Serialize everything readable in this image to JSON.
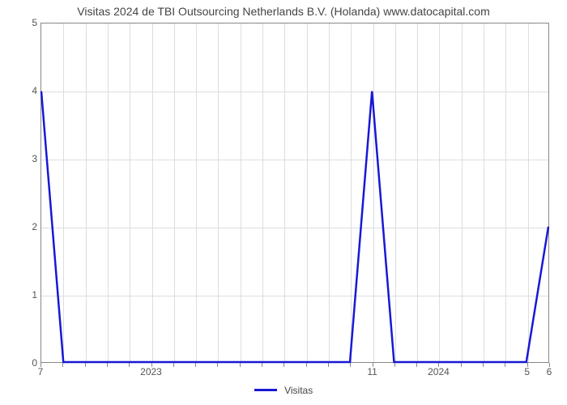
{
  "chart": {
    "type": "line",
    "title": "Visitas 2024 de TBI Outsourcing Netherlands B.V. (Holanda) www.datocapital.com",
    "title_fontsize": 14,
    "title_color": "#444444",
    "background_color": "#ffffff",
    "plot_border_color": "#888888",
    "grid_color": "#dddddd",
    "axis_label_color": "#555555",
    "axis_fontsize": 12,
    "ylim": [
      0,
      5
    ],
    "ytick_step": 1,
    "yticks": [
      0,
      1,
      2,
      3,
      4,
      5
    ],
    "xlim": [
      0,
      23
    ],
    "minor_xticks": [
      1,
      2,
      3,
      4,
      5,
      6,
      7,
      8,
      9,
      10,
      11,
      12,
      13,
      14,
      15,
      16,
      17,
      18,
      19,
      20,
      21,
      22
    ],
    "xticks": [
      {
        "pos": 0,
        "label": "7"
      },
      {
        "pos": 5,
        "label": "2023"
      },
      {
        "pos": 15,
        "label": "11"
      },
      {
        "pos": 18,
        "label": "2024"
      },
      {
        "pos": 22,
        "label": "5"
      },
      {
        "pos": 23,
        "label": "6"
      }
    ],
    "series": [
      {
        "name": "Visitas",
        "color": "#1818d6",
        "line_width": 2.5,
        "x": [
          0,
          1,
          2,
          3,
          4,
          5,
          6,
          7,
          8,
          9,
          10,
          11,
          12,
          13,
          14,
          15,
          16,
          17,
          18,
          19,
          20,
          21,
          22,
          23
        ],
        "y": [
          4,
          0,
          0,
          0,
          0,
          0,
          0,
          0,
          0,
          0,
          0,
          0,
          0,
          0,
          0,
          4,
          0,
          0,
          0,
          0,
          0,
          0,
          0,
          2
        ]
      }
    ],
    "legend": {
      "position": "bottom-center",
      "items": [
        {
          "label": "Visitas",
          "color": "#1818d6"
        }
      ]
    }
  }
}
